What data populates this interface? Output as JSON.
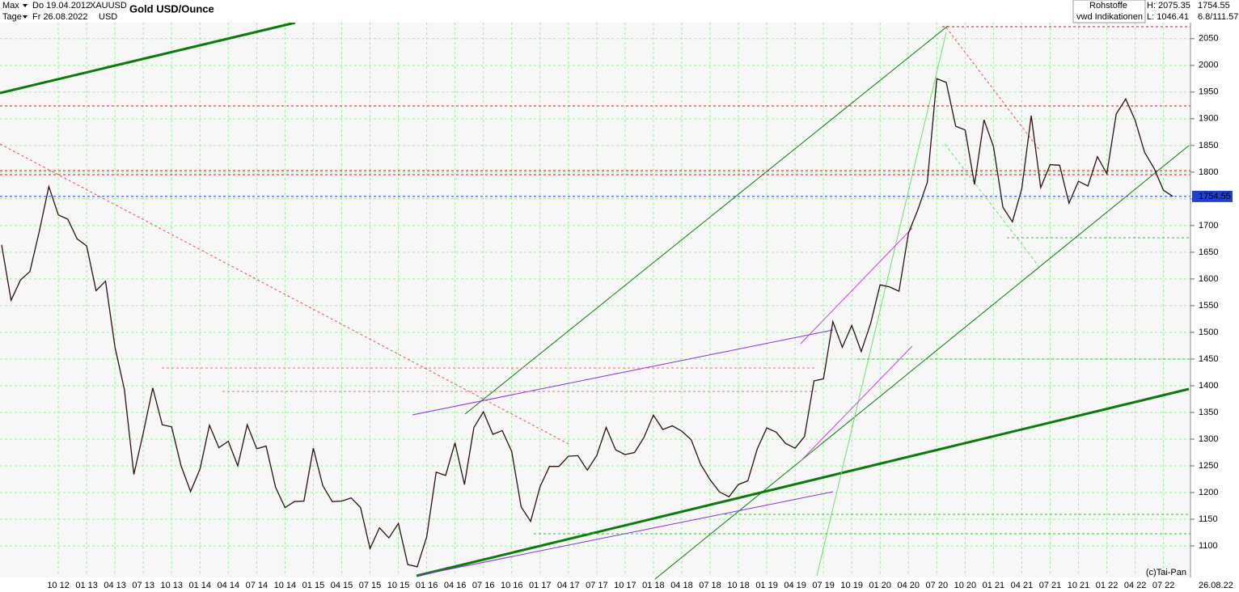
{
  "header": {
    "range_label": "Max",
    "start": "Do 19.04.2012",
    "symbol": "XAUUSD",
    "period_label": "Tage",
    "end": "Fr 26.08.2022",
    "currency": "USD",
    "title": "Gold USD/Ounce"
  },
  "info": {
    "group": "Rohstoffe",
    "source": "vwd Indikationen",
    "high": "H: 2075.35",
    "low": "L: 1046.41",
    "last": "1754.55",
    "change": "6.8/111.57"
  },
  "footer": {
    "copyright": "(c)Tai-Pan",
    "date": "26.08.22"
  },
  "chart_data": {
    "type": "line",
    "color": "#2a1010",
    "categories": [
      null,
      null,
      null,
      null,
      null,
      null,
      "10 12",
      null,
      null,
      "01 13",
      null,
      null,
      "04 13",
      null,
      null,
      "07 13",
      null,
      null,
      "10 13",
      null,
      null,
      "01 14",
      null,
      null,
      "04 14",
      null,
      null,
      "07 14",
      null,
      null,
      "10 14",
      null,
      null,
      "01 15",
      null,
      null,
      "04 15",
      null,
      null,
      "07 15",
      null,
      null,
      "10 15",
      null,
      null,
      "01 16",
      null,
      null,
      "04 16",
      null,
      null,
      "07 16",
      null,
      null,
      "10 16",
      null,
      null,
      "01 17",
      null,
      null,
      "04 17",
      null,
      null,
      "07 17",
      null,
      null,
      "10 17",
      null,
      null,
      "01 18",
      null,
      null,
      "04 18",
      null,
      null,
      "07 18",
      null,
      null,
      "10 18",
      null,
      null,
      "01 19",
      null,
      null,
      "04 19",
      null,
      null,
      "07 19",
      null,
      null,
      "10 19",
      null,
      null,
      "01 20",
      null,
      null,
      "04 20",
      null,
      null,
      "07 20",
      null,
      null,
      "10 20",
      null,
      null,
      "01 21",
      null,
      null,
      "04 21",
      null,
      null,
      "07 21",
      null,
      null,
      "10 21",
      null,
      null,
      "01 22",
      null,
      null,
      "04 22",
      null,
      null,
      "07 22",
      null
    ],
    "values": [
      1664,
      1560,
      1598,
      1614,
      1690,
      1773,
      1720,
      1712,
      1675,
      1662,
      1578,
      1596,
      1472,
      1393,
      1234,
      1312,
      1396,
      1327,
      1323,
      1250,
      1202,
      1244,
      1326,
      1284,
      1296,
      1250,
      1327,
      1282,
      1287,
      1210,
      1172,
      1183,
      1184,
      1283,
      1213,
      1183,
      1184,
      1190,
      1172,
      1095,
      1134,
      1115,
      1142,
      1065,
      1061,
      1117,
      1238,
      1232,
      1293,
      1215,
      1322,
      1351,
      1309,
      1316,
      1277,
      1173,
      1146,
      1211,
      1249,
      1249,
      1268,
      1269,
      1242,
      1269,
      1322,
      1280,
      1271,
      1275,
      1303,
      1345,
      1318,
      1325,
      1315,
      1299,
      1253,
      1224,
      1201,
      1192,
      1215,
      1222,
      1282,
      1321,
      1313,
      1292,
      1283,
      1305,
      1409,
      1413,
      1520,
      1472,
      1513,
      1464,
      1517,
      1589,
      1585,
      1577,
      1686,
      1730,
      1781,
      1975,
      1968,
      1886,
      1879,
      1777,
      1898,
      1848,
      1734,
      1707,
      1769,
      1906,
      1771,
      1814,
      1813,
      1742,
      1783,
      1774,
      1829,
      1797,
      1909,
      1937,
      1897,
      1837,
      1807,
      1766,
      1754.55
    ],
    "ylim": [
      1044,
      2080
    ],
    "yticks": [
      1100,
      1150,
      1200,
      1250,
      1300,
      1350,
      1400,
      1450,
      1500,
      1550,
      1600,
      1650,
      1700,
      1750,
      1800,
      1850,
      1900,
      1950,
      2000,
      2050
    ],
    "last_price": {
      "value": 1754.55,
      "label": "1754.55",
      "color": "#1f3fcf"
    },
    "grid": true
  }
}
